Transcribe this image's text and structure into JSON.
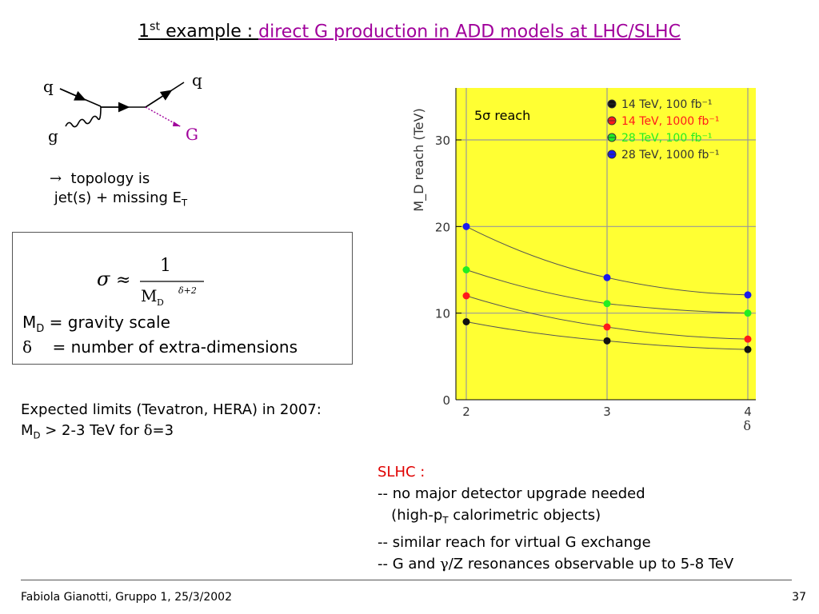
{
  "title": {
    "prefix": "1",
    "prefix_sup": "st",
    "prefix_rest": " example : ",
    "accent": "direct G production in ADD models at LHC/SLHC"
  },
  "diagram": {
    "q_in": "q",
    "q_out": "q",
    "g_in": "g",
    "G_out": "G",
    "colors": {
      "arrow": "#000000",
      "graviton": "#a0009b",
      "graviton_label": "#a0009b"
    }
  },
  "topology": {
    "arrow": "→",
    "line1": "topology  is",
    "line2": "jet(s) + missing E",
    "line2_sub": "T"
  },
  "formula": {
    "sigma": "σ",
    "approx": "≈",
    "numerator": "1",
    "denominator": "M",
    "denominator_sub": "D",
    "exponent": "δ+2",
    "def1_symbol": "M",
    "def1_sub": "D",
    "def1_text": " = gravity scale",
    "def2_symbol": "δ",
    "def2_text": "= number of extra-dimensions"
  },
  "expected": {
    "line1": "Expected limits  (Tevatron, HERA) in 2007:",
    "line2_a": "M",
    "line2_sub": "D",
    "line2_b": " > 2-3 TeV  for ",
    "line2_delta": "δ",
    "line2_c": "=3"
  },
  "chart_data": {
    "type": "scatter",
    "title": "5σ reach",
    "xlabel": "δ",
    "ylabel": "M_D reach (TeV)",
    "xlim": [
      2,
      4
    ],
    "ylim": [
      0,
      36
    ],
    "x_ticks": [
      2,
      3,
      4
    ],
    "y_ticks": [
      0,
      10,
      20,
      30
    ],
    "background": "#ffff33",
    "grid": true,
    "legend_position": "top-right",
    "x": [
      2,
      3,
      4
    ],
    "series": [
      {
        "name": "14 TeV, 100 fb⁻¹",
        "color": "#111111",
        "values": [
          9,
          6.8,
          5.8
        ]
      },
      {
        "name": "14 TeV, 1000 fb⁻¹",
        "color": "#ff1a1a",
        "values": [
          12,
          8.4,
          7
        ]
      },
      {
        "name": "28 TeV, 100 fb⁻¹",
        "color": "#22ee22",
        "values": [
          15,
          11.1,
          10
        ]
      },
      {
        "name": "28 TeV, 1000 fb⁻¹",
        "color": "#1a1aee",
        "values": [
          20,
          14.1,
          12.1
        ]
      }
    ]
  },
  "slhc": {
    "heading": "SLHC :",
    "line1": "-- no major detector upgrade needed",
    "line2_a": "   (high-p",
    "line2_sub": "T",
    "line2_b": " calorimetric objects)",
    "line3": "-- similar reach for virtual G exchange",
    "line4_a": "-- G and ",
    "line4_gamma": "γ",
    "line4_b": "/Z resonances observable up to 5-8 TeV"
  },
  "footer": {
    "left": "Fabiola Gianotti,  Gruppo 1, 25/3/2002",
    "page": "37"
  }
}
